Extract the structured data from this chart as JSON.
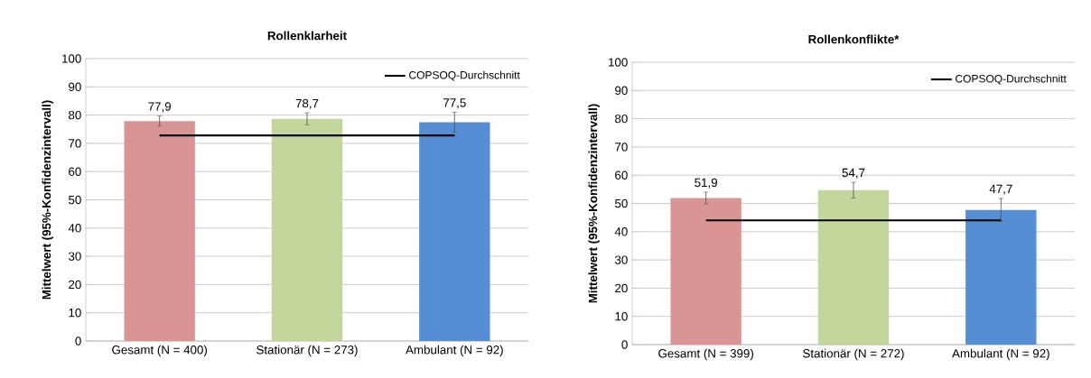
{
  "chart_data": [
    {
      "type": "bar",
      "title": "Rollenklarheit",
      "ylabel": "Mittelwert (95%-Konfidenzintervall)",
      "categories": [
        "Gesamt (N = 400)",
        "Stationär (N = 273)",
        "Ambulant (N = 92)"
      ],
      "ylim": [
        0,
        100
      ],
      "yticks": [
        0,
        10,
        20,
        30,
        40,
        50,
        60,
        70,
        80,
        90,
        100
      ],
      "grid": "y",
      "legend": "top right",
      "values": [
        77.9,
        78.7,
        77.5
      ],
      "colors": [
        "#d99594",
        "#c3d69b",
        "#558ed5"
      ],
      "errors": [
        1.8,
        2.1,
        3.5
      ],
      "value_labels": [
        "77,9",
        "78,7",
        "77,5"
      ],
      "ref_lines": [
        {
          "axis": "y",
          "value": 72.8,
          "label": "COPSOQ-Durchschnitt",
          "color": "#000000"
        }
      ]
    },
    {
      "type": "bar",
      "title": "Rollenkonflikte*",
      "ylabel": "Mittelwert (95%-Konfidenzintervall)",
      "categories": [
        "Gesamt (N = 399)",
        "Stationär (N = 272)",
        "Ambulant (N = 92)"
      ],
      "ylim": [
        0,
        100
      ],
      "yticks": [
        0,
        10,
        20,
        30,
        40,
        50,
        60,
        70,
        80,
        90,
        100
      ],
      "grid": "y",
      "legend": "top right",
      "values": [
        51.9,
        54.7,
        47.7
      ],
      "colors": [
        "#d99594",
        "#c3d69b",
        "#558ed5"
      ],
      "errors": [
        2.1,
        2.8,
        4.1
      ],
      "value_labels": [
        "51,9",
        "54,7",
        "47,7"
      ],
      "ref_lines": [
        {
          "axis": "y",
          "value": 44,
          "label": "COPSOQ-Durchschnitt",
          "color": "#000000"
        }
      ]
    }
  ]
}
